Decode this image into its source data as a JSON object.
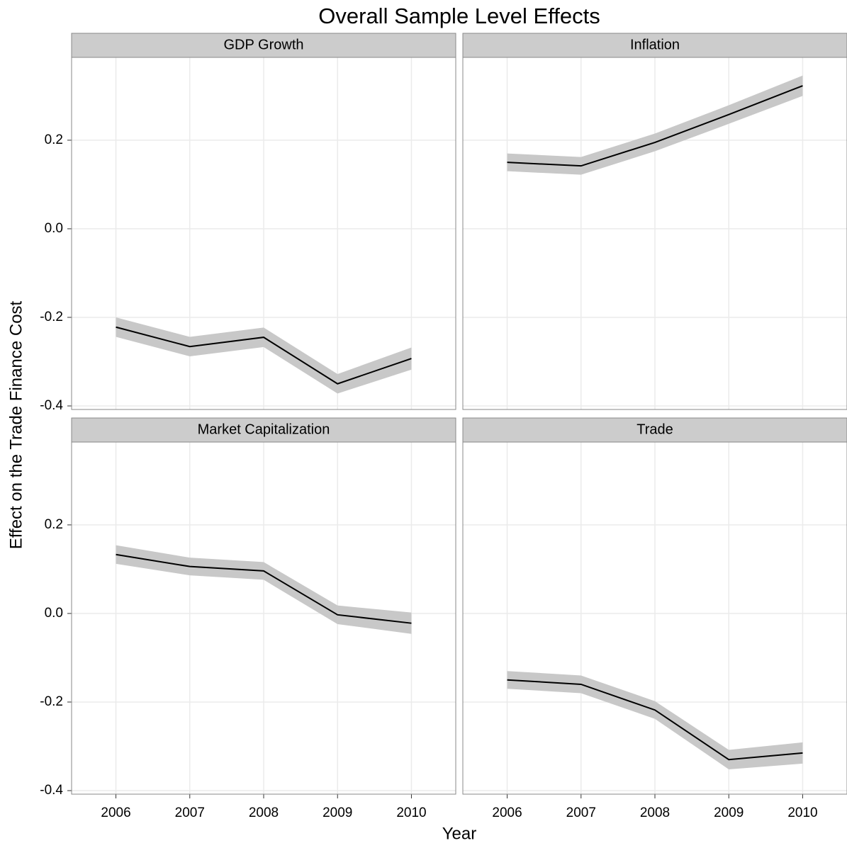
{
  "title": "Overall Sample Level Effects",
  "x_label": "Year",
  "y_label": "Effect on the Trade Finance Cost",
  "chart_data": [
    {
      "type": "line",
      "title": "GDP Growth",
      "x": [
        2006,
        2007,
        2008,
        2009,
        2010
      ],
      "series": [
        {
          "color": "#000000",
          "band_color": "#c8c8c8",
          "values": [
            -0.222,
            -0.266,
            -0.245,
            -0.35,
            -0.293
          ],
          "lower": [
            -0.244,
            -0.288,
            -0.267,
            -0.372,
            -0.318
          ],
          "upper": [
            -0.2,
            -0.244,
            -0.223,
            -0.328,
            -0.268
          ]
        }
      ],
      "xlim": [
        2005.4,
        2010.6
      ],
      "ylim": [
        -0.408,
        0.387
      ],
      "xticks": [
        2006,
        2007,
        2008,
        2009,
        2010
      ],
      "yticks": [
        -0.4,
        -0.2,
        {
          "value": 0,
          "label": "0.0"
        },
        0.2
      ],
      "grid": true
    },
    {
      "type": "line",
      "title": "Inflation",
      "x": [
        2006,
        2007,
        2008,
        2009,
        2010
      ],
      "series": [
        {
          "color": "#000000",
          "band_color": "#c8c8c8",
          "values": [
            0.15,
            0.142,
            0.195,
            0.258,
            0.323
          ],
          "lower": [
            0.13,
            0.122,
            0.175,
            0.237,
            0.3
          ],
          "upper": [
            0.17,
            0.162,
            0.215,
            0.279,
            0.346
          ]
        }
      ],
      "xlim": [
        2005.4,
        2010.6
      ],
      "ylim": [
        -0.408,
        0.387
      ],
      "xticks": [
        2006,
        2007,
        2008,
        2009,
        2010
      ],
      "yticks": [
        -0.4,
        -0.2,
        {
          "value": 0,
          "label": "0.0"
        },
        0.2
      ],
      "grid": true
    },
    {
      "type": "line",
      "title": "Market Capitalization",
      "x": [
        2006,
        2007,
        2008,
        2009,
        2010
      ],
      "series": [
        {
          "color": "#000000",
          "band_color": "#c8c8c8",
          "values": [
            0.133,
            0.106,
            0.096,
            -0.003,
            -0.022
          ],
          "lower": [
            0.112,
            0.086,
            0.076,
            -0.024,
            -0.046
          ],
          "upper": [
            0.154,
            0.126,
            0.116,
            0.018,
            0.002
          ]
        }
      ],
      "xlim": [
        2005.4,
        2010.6
      ],
      "ylim": [
        -0.408,
        0.387
      ],
      "xticks": [
        2006,
        2007,
        2008,
        2009,
        2010
      ],
      "yticks": [
        -0.4,
        -0.2,
        {
          "value": 0,
          "label": "0.0"
        },
        0.2
      ],
      "grid": true
    },
    {
      "type": "line",
      "title": "Trade",
      "x": [
        2006,
        2007,
        2008,
        2009,
        2010
      ],
      "series": [
        {
          "color": "#000000",
          "band_color": "#c8c8c8",
          "values": [
            -0.15,
            -0.16,
            -0.218,
            -0.33,
            -0.315
          ],
          "lower": [
            -0.17,
            -0.18,
            -0.238,
            -0.352,
            -0.339
          ],
          "upper": [
            -0.13,
            -0.14,
            -0.198,
            -0.308,
            -0.291
          ]
        }
      ],
      "xlim": [
        2005.4,
        2010.6
      ],
      "ylim": [
        -0.408,
        0.387
      ],
      "xticks": [
        2006,
        2007,
        2008,
        2009,
        2010
      ],
      "yticks": [
        -0.4,
        -0.2,
        {
          "value": 0,
          "label": "0.0"
        },
        0.2
      ],
      "grid": true
    }
  ]
}
